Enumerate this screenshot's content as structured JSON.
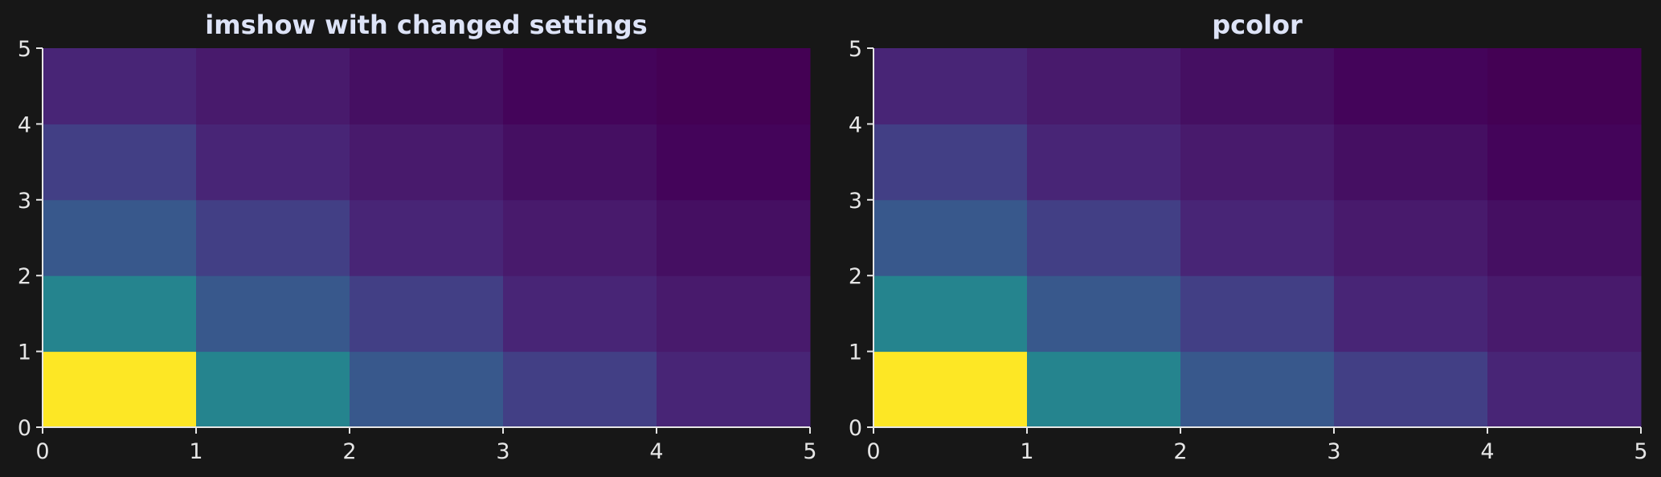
{
  "theme": {
    "background": "#171717",
    "text_color": "#dde3f7",
    "tick_label_color": "#e6e6e6",
    "axis_color": "#e6e6e6"
  },
  "chart_data": [
    {
      "type": "heatmap",
      "title": "imshow with changed settings",
      "xlabel": "",
      "ylabel": "",
      "xlim": [
        0,
        5
      ],
      "ylim": [
        0,
        5
      ],
      "xticks": [
        0,
        1,
        2,
        3,
        4,
        5
      ],
      "yticks": [
        0,
        1,
        2,
        3,
        4,
        5
      ],
      "grid": false,
      "colormap": "viridis",
      "rows_from_bottom": [
        [
          "#fde725",
          "#25848e",
          "#38588c",
          "#423f85",
          "#482576"
        ],
        [
          "#25848e",
          "#38588c",
          "#423f85",
          "#482576",
          "#481a6c"
        ],
        [
          "#38588c",
          "#423f85",
          "#482576",
          "#481a6c",
          "#450f62"
        ],
        [
          "#423f85",
          "#482576",
          "#481a6c",
          "#450f62",
          "#44045a"
        ],
        [
          "#482576",
          "#481a6c",
          "#450f62",
          "#44045a",
          "#440154"
        ]
      ]
    },
    {
      "type": "heatmap",
      "title": "pcolor",
      "xlabel": "",
      "ylabel": "",
      "xlim": [
        0,
        5
      ],
      "ylim": [
        0,
        5
      ],
      "xticks": [
        0,
        1,
        2,
        3,
        4,
        5
      ],
      "yticks": [
        0,
        1,
        2,
        3,
        4,
        5
      ],
      "grid": false,
      "colormap": "viridis",
      "rows_from_bottom": [
        [
          "#fde725",
          "#25848e",
          "#38588c",
          "#423f85",
          "#482576"
        ],
        [
          "#25848e",
          "#38588c",
          "#423f85",
          "#482576",
          "#481a6c"
        ],
        [
          "#38588c",
          "#423f85",
          "#482576",
          "#481a6c",
          "#450f62"
        ],
        [
          "#423f85",
          "#482576",
          "#481a6c",
          "#450f62",
          "#44045a"
        ],
        [
          "#482576",
          "#481a6c",
          "#450f62",
          "#44045a",
          "#440154"
        ]
      ]
    }
  ]
}
